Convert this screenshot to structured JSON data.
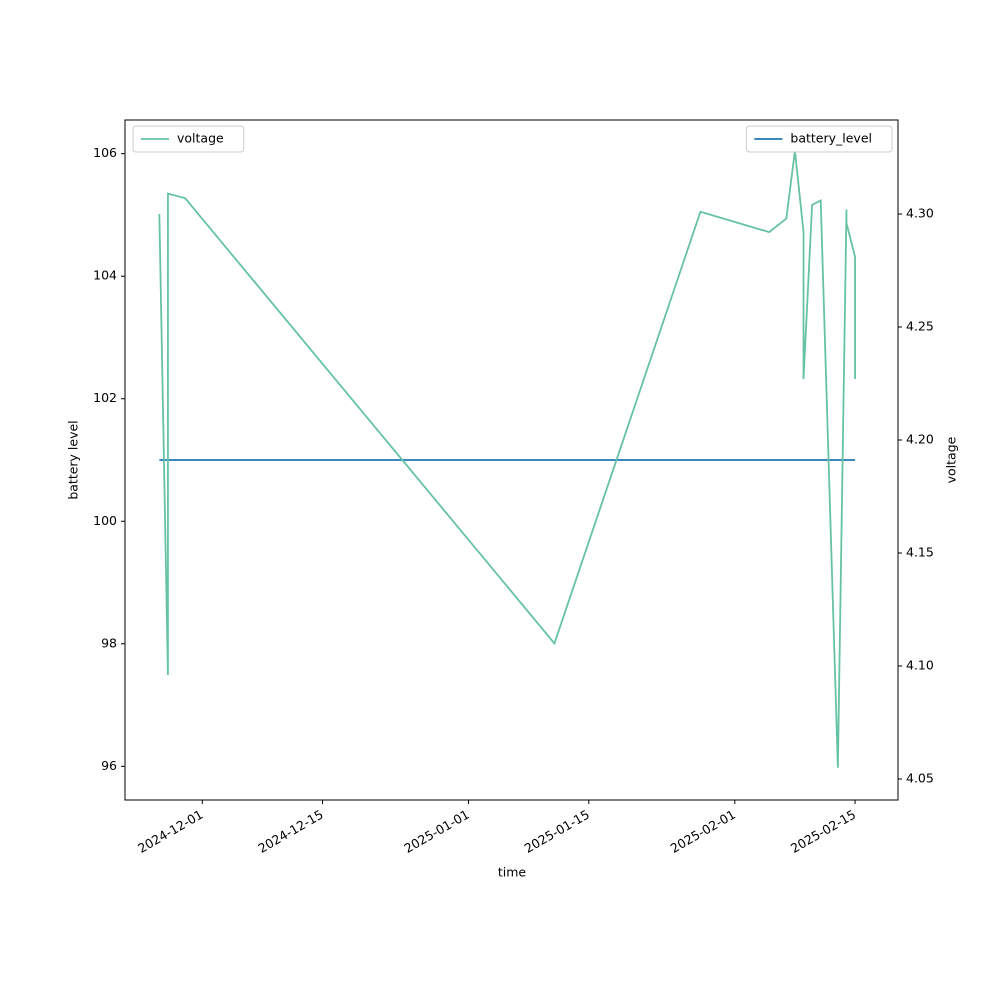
{
  "chart_data": {
    "type": "line",
    "x_label": "time",
    "y_label": "battery level",
    "y2_label": "voltage",
    "x": [
      "2024-11-26",
      "2024-11-27",
      "2024-11-27",
      "2024-11-29",
      "2025-01-11",
      "2025-01-28",
      "2025-02-05",
      "2025-02-07",
      "2025-02-08",
      "2025-02-09",
      "2025-02-09",
      "2025-02-09",
      "2025-02-10",
      "2025-02-11",
      "2025-02-13",
      "2025-02-14",
      "2025-02-14",
      "2025-02-15",
      "2025-02-15"
    ],
    "series": [
      {
        "name": "battery_level",
        "color": "#1f77b4",
        "axis": "y",
        "legend_loc": "upper right",
        "values": [
          101,
          101,
          101,
          101,
          101,
          101,
          101,
          101,
          101,
          101,
          101,
          101,
          101,
          101,
          101,
          101,
          101,
          101,
          101
        ]
      },
      {
        "name": "voltage",
        "color": "#66c2a5",
        "axis": "y2",
        "legend_loc": "upper left",
        "values": [
          4.3,
          4.096,
          4.309,
          4.307,
          4.11,
          4.301,
          4.292,
          4.298,
          4.328,
          4.292,
          4.291,
          4.227,
          4.304,
          4.306,
          4.055,
          4.302,
          4.296,
          4.281,
          4.227
        ]
      }
    ],
    "xlim": [
      "2024-11-22",
      "2025-02-20"
    ],
    "xticks": [
      "2024-12-01",
      "2024-12-15",
      "2025-01-01",
      "2025-01-15",
      "2025-02-01",
      "2025-02-15"
    ],
    "ylim": [
      95.45,
      106.55
    ],
    "yticks": [
      96,
      98,
      100,
      102,
      104,
      106
    ],
    "y2lim": [
      4.0407,
      4.3416
    ],
    "y2ticks": [
      4.05,
      {
        "value": 4.1,
        "label": "4.10"
      },
      4.15,
      {
        "value": 4.2,
        "label": "4.20"
      },
      4.25,
      {
        "value": 4.3,
        "label": "4.30"
      }
    ]
  }
}
